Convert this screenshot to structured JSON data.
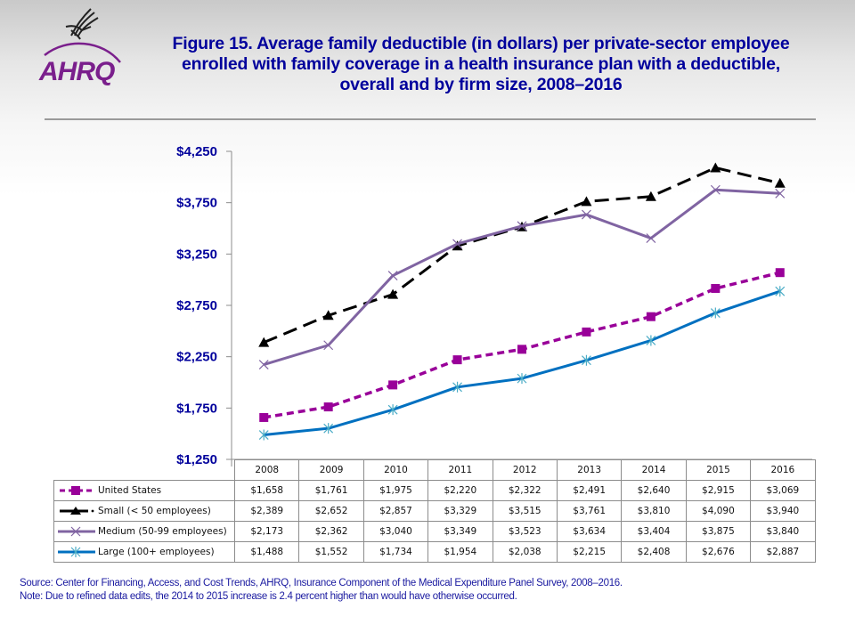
{
  "header": {
    "logo_text": "AHRQ",
    "title": "Figure 15. Average family deductible (in dollars) per private-sector employee enrolled with family coverage in a health insurance plan with a deductible, overall and by firm size, 2008–2016"
  },
  "chart_data": {
    "type": "line",
    "title": "Figure 15. Average family deductible (in dollars) per private-sector employee enrolled with family coverage in a health insurance plan with a deductible, overall and by firm size, 2008–2016",
    "xlabel": "",
    "ylabel": "",
    "x": [
      "2008",
      "2009",
      "2010",
      "2011",
      "2012",
      "2013",
      "2014",
      "2015",
      "2016"
    ],
    "ylim": [
      1250,
      4250
    ],
    "yticks": [
      1250,
      1750,
      2250,
      2750,
      3250,
      3750,
      4250
    ],
    "ytick_labels": [
      "$1,250",
      "$1,750",
      "$2,250",
      "$2,750",
      "$3,250",
      "$3,750",
      "$4,250"
    ],
    "grid": false,
    "legend_placement": "data-table-below",
    "series": [
      {
        "name": "United States",
        "color": "#990099",
        "dash": "dashed",
        "marker": "square",
        "values": [
          1658,
          1761,
          1975,
          2220,
          2322,
          2491,
          2640,
          2915,
          3069
        ],
        "labels": [
          "$1,658",
          "$1,761",
          "$1,975",
          "$2,220",
          "$2,322",
          "$2,491",
          "$2,640",
          "$2,915",
          "$3,069"
        ]
      },
      {
        "name": "Small (< 50 employees)",
        "color": "#000000",
        "dash": "long-dash",
        "marker": "triangle",
        "values": [
          2389,
          2652,
          2857,
          3329,
          3515,
          3761,
          3810,
          4090,
          3940
        ],
        "labels": [
          "$2,389",
          "$2,652",
          "$2,857",
          "$3,329",
          "$3,515",
          "$3,761",
          "$3,810",
          "$4,090",
          "$3,940"
        ]
      },
      {
        "name": "Medium (50-99 employees)",
        "color": "#8064a2",
        "dash": "solid",
        "marker": "x",
        "values": [
          2173,
          2362,
          3040,
          3349,
          3523,
          3634,
          3404,
          3875,
          3840
        ],
        "labels": [
          "$2,173",
          "$2,362",
          "$3,040",
          "$3,349",
          "$3,523",
          "$3,634",
          "$3,404",
          "$3,875",
          "$3,840"
        ]
      },
      {
        "name": "Large (100+ employees)",
        "color": "#0070c0",
        "dash": "solid",
        "marker": "asterisk",
        "values": [
          1488,
          1552,
          1734,
          1954,
          2038,
          2215,
          2408,
          2676,
          2887
        ],
        "labels": [
          "$1,488",
          "$1,552",
          "$1,734",
          "$1,954",
          "$2,038",
          "$2,215",
          "$2,408",
          "$2,676",
          "$2,887"
        ]
      }
    ]
  },
  "footnotes": {
    "source": "Source: Center for Financing, Access, and Cost Trends, AHRQ, Insurance Component of the Medical Expenditure Panel Survey, 2008–2016.",
    "note": "Note: Due to refined data edits, the 2014 to 2015 increase is 2.4 percent higher than would have otherwise occurred."
  }
}
